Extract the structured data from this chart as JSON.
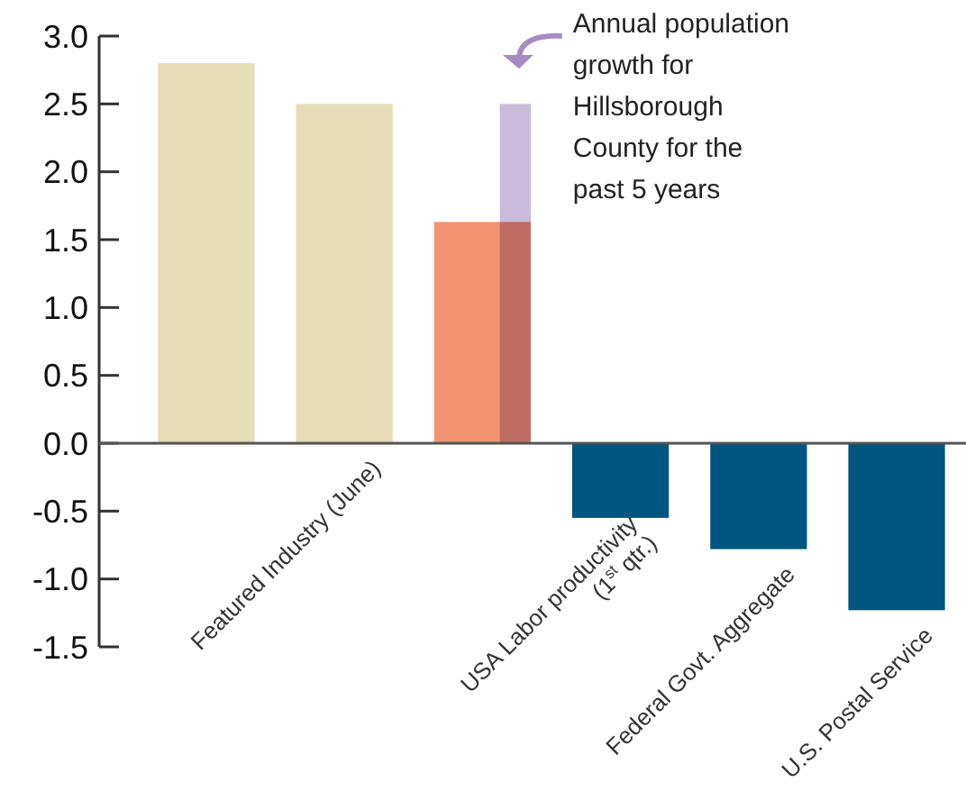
{
  "chart_data": {
    "type": "bar",
    "categories": [
      null,
      "Featured Industry (June)",
      null,
      "USA Labor productivity (1$^{st}$ qtr.)",
      "Federal Govt. Aggregate",
      "U.S. Postal Service"
    ],
    "series": [
      {
        "colors": [
          "#e6dcb5",
          "#e6dcb5",
          "#f29372",
          "#005581",
          "#005581",
          "#005581"
        ],
        "values": [
          2.8,
          2.5,
          1.63,
          -0.55,
          -0.78,
          -1.23
        ]
      },
      {
        "color": "#c1afd4",
        "values": [
          null,
          null,
          2.5,
          null,
          null,
          null
        ]
      }
    ],
    "ylim": [
      -1.5,
      3.0
    ],
    "yticks": [
      {
        "value": -1.5,
        "label": "-1.5"
      },
      {
        "value": -1,
        "label": "-1.0"
      },
      {
        "value": -0.5,
        "label": "-0.5"
      },
      {
        "value": 0,
        "label": "0.0"
      },
      {
        "value": 0.5,
        "label": "0.5"
      },
      {
        "value": 1,
        "label": "1.0"
      },
      {
        "value": 1.5,
        "label": "1.5"
      },
      {
        "value": 2,
        "label": "2.0"
      },
      {
        "value": 2.5,
        "label": "2.5"
      },
      {
        "value": 3,
        "label": "3.0"
      }
    ],
    "annotations": [
      "Annual population growth for Hillsborough County for the past 5 years"
    ]
  }
}
